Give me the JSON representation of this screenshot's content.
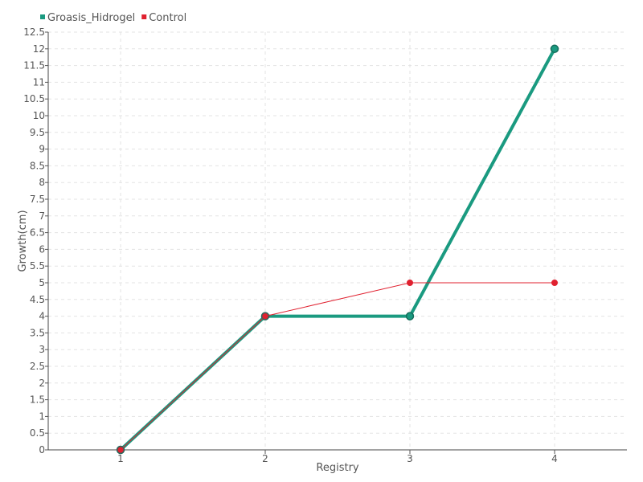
{
  "chart_data": {
    "type": "line",
    "title": "",
    "xlabel": "Registry",
    "ylabel": "Growth(cm)",
    "categories": [
      "1",
      "2",
      "3",
      "4"
    ],
    "ylim": [
      0,
      12.5
    ],
    "ytick_step": 0.5,
    "grid": true,
    "legend_position": "top-left",
    "series": [
      {
        "name": "Groasis_Hidrogel",
        "color": "#1a9a80",
        "values": [
          0,
          4,
          4,
          12
        ]
      },
      {
        "name": "Control",
        "color": "#e0202f",
        "values": [
          0,
          4,
          5,
          5
        ]
      }
    ]
  }
}
